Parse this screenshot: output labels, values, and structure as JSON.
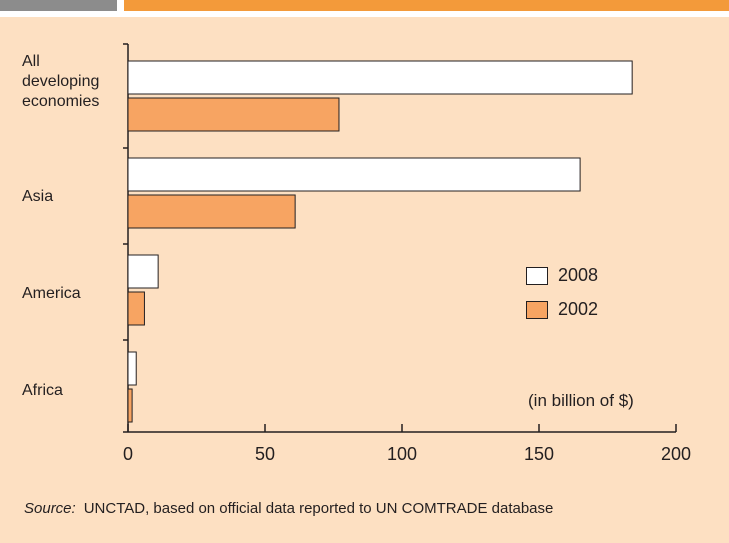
{
  "chart_data": {
    "type": "bar",
    "orientation": "horizontal",
    "categories": [
      "All\ndeveloping\neconomies",
      "Asia",
      "America",
      "Africa"
    ],
    "series": [
      {
        "name": "2008",
        "values": [
          184,
          165,
          11,
          3
        ],
        "color": "#ffffff"
      },
      {
        "name": "2002",
        "values": [
          77,
          61,
          6,
          1.5
        ],
        "color": "#f7a462"
      }
    ],
    "xlim": [
      0,
      200
    ],
    "xticks": [
      "0",
      "50",
      "100",
      "150",
      "200"
    ],
    "legend_placement": "right",
    "unit_label": "(in billion of $)",
    "grid": false
  },
  "source": {
    "label": "Source:",
    "text": "UNCTAD,  based on official data reported to UN COMTRADE database"
  },
  "colors": {
    "header_gray": "#8c8c8c",
    "header_orange": "#f39a3a",
    "panel_background": "#fde0c2",
    "bar_2002": "#f7a462",
    "bar_2008": "#ffffff",
    "axis": "#231f20"
  }
}
